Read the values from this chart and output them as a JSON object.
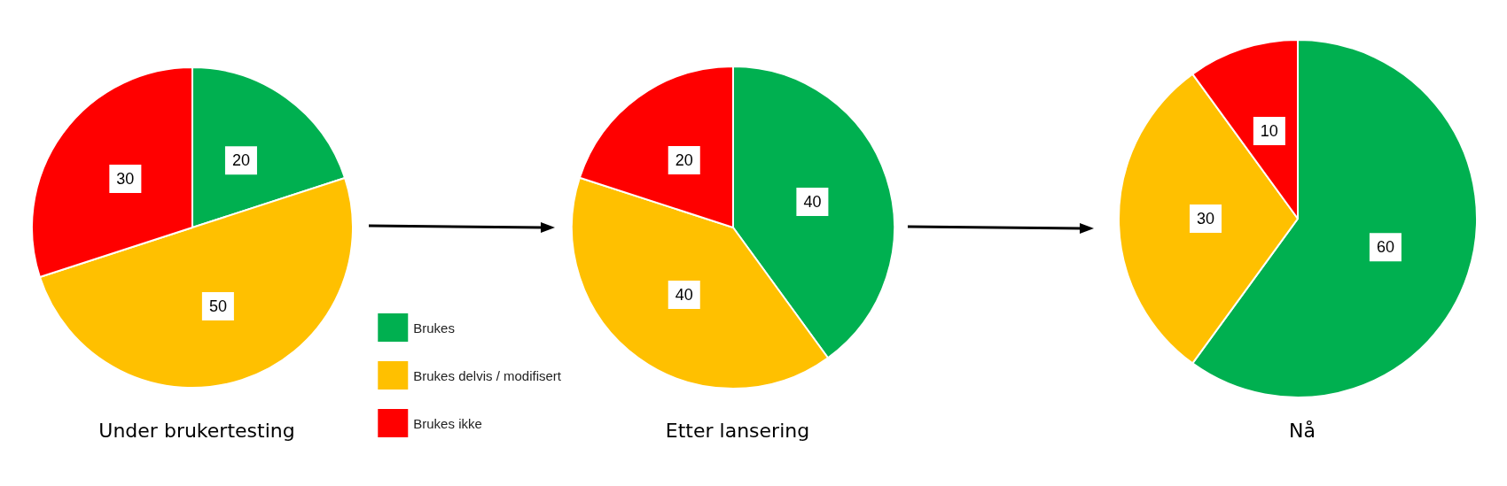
{
  "chart_data": [
    {
      "type": "pie",
      "title": "Under brukertesting",
      "categories": [
        "Brukes",
        "Brukes delvis / modifisert",
        "Brukes ikke"
      ],
      "values": [
        20,
        50,
        30
      ],
      "colors": [
        "#00b050",
        "#ffc000",
        "#ff0000"
      ],
      "data_labels": true,
      "legend": "bottom right"
    },
    {
      "type": "pie",
      "title": "Etter lansering",
      "categories": [
        null,
        null,
        null
      ],
      "values": [
        40,
        40,
        20
      ],
      "colors": [
        "#00b050",
        "#ffc000",
        "#ff0000"
      ],
      "data_labels": true
    },
    {
      "type": "pie",
      "title": "Nå",
      "categories": [
        null,
        null,
        null
      ],
      "values": [
        60,
        30,
        10
      ],
      "colors": [
        "#00b050",
        "#ffc000",
        "#ff0000"
      ],
      "data_labels": true
    }
  ]
}
